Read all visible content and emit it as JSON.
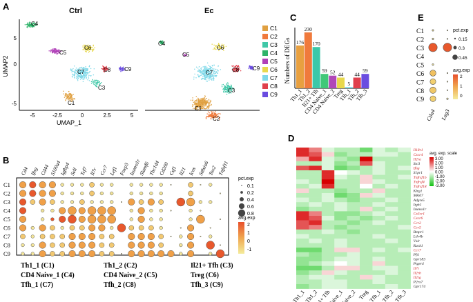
{
  "panels": {
    "A": {
      "label": "A",
      "titles": [
        "Ctrl",
        "Ec"
      ],
      "xlabel": "UMAP_1",
      "ylabel": "UMAP2",
      "xticks": [
        "-5",
        "-2.5",
        "0",
        "2.5",
        "5"
      ],
      "yticks": [
        "5",
        "0",
        "-5"
      ],
      "legend": [
        {
          "name": "C1",
          "color": "#e0a040"
        },
        {
          "name": "C2",
          "color": "#f07a3c"
        },
        {
          "name": "C3",
          "color": "#40c8a8"
        },
        {
          "name": "C4",
          "color": "#2fb36a"
        },
        {
          "name": "C5",
          "color": "#b040b8"
        },
        {
          "name": "C6",
          "color": "#e8d84c"
        },
        {
          "name": "C7",
          "color": "#7ed8e8"
        },
        {
          "name": "C8",
          "color": "#e0404c"
        },
        {
          "name": "C9",
          "color": "#6a4ce0"
        }
      ],
      "cluster_labels_ctrl": [
        "C4",
        "C5",
        "C6",
        "C7",
        "C8",
        "C9",
        "C3",
        "C1"
      ],
      "cluster_labels_ec": [
        "C4",
        "C5",
        "C6",
        "C7",
        "C8",
        "C9",
        "C3",
        "C1",
        "C2"
      ]
    },
    "B": {
      "label": "B",
      "genes": [
        "Cd4",
        "Ifng",
        "Cd44",
        "S100a4",
        "Igfbp4",
        "Sell",
        "Tcf7",
        "Il7r",
        "Ccr7",
        "Lef1",
        "Foxp3",
        "Izumo1r",
        "Slamf6",
        "Tbc1d4",
        "Cd200",
        "Csf1",
        "Il21",
        "Icos",
        "St8sia6",
        "Tox2",
        "Tnfsf11"
      ],
      "clusters": [
        "C1",
        "C2",
        "C3",
        "C4",
        "C5",
        "C6",
        "C7",
        "C8",
        "C9"
      ],
      "size_legend_title": "pct.exp",
      "size_legend": [
        "0.1",
        "0.2",
        "0.4",
        "0.6",
        "0.8"
      ],
      "color_legend_title": "avg.exp",
      "color_ticks": [
        "2",
        "1",
        "0",
        "-1"
      ],
      "captions": [
        [
          "Th1_1 (C1)",
          "CD4 Naive_1 (C4)",
          "Tfh_1 (C7)"
        ],
        [
          "Th1_2 (C2)",
          "CD4 Naive_2 (C5)",
          "Tfh_2 (C8)"
        ],
        [
          "Il21+ Tfh (C3)",
          "Treg (C6)",
          "Tfh_3 (C9)"
        ]
      ]
    },
    "C": {
      "label": "C",
      "ylabel": "Numbers of DEGs"
    },
    "D": {
      "label": "D",
      "genes": [
        "Il18r1",
        "Cxcr4",
        "Il2ra",
        "Stc3",
        "Ifng",
        "S1pr1",
        "Tnfrsf1b",
        "Tnfrsf4",
        "Tnfrsf18",
        "Klrg1",
        "Mki67",
        "Adgre5",
        "Itgb1",
        "Izumo1r",
        "Cx3cr1",
        "Cxcr6",
        "Ccr2",
        "Ccr5",
        "Bmpr1",
        "Lilr4b",
        "Vsir",
        "Rack1",
        "Ccr7",
        "Pf4",
        "Gpr183",
        "Ptger4",
        "Il7r",
        "Il2rb",
        "Il2rg",
        "P2rx7",
        "Gpr174"
      ],
      "gene_colors": [
        "#d02020",
        "#d02020",
        "#d02020",
        "#202020",
        "#d02020",
        "#202020",
        "#d02020",
        "#d02020",
        "#d02020",
        "#202020",
        "#202020",
        "#202020",
        "#202020",
        "#202020",
        "#d02020",
        "#d02020",
        "#d02020",
        "#d02020",
        "#202020",
        "#202020",
        "#202020",
        "#202020",
        "#d02020",
        "#202020",
        "#202020",
        "#202020",
        "#d02020",
        "#d02020",
        "#d02020",
        "#202020",
        "#202020"
      ],
      "columns": [
        "Th1_1",
        "Th1_2",
        "Il21+ Tfh",
        "CD4 Naive_1",
        "CD4 Naive_2",
        "Treg",
        "Tfh_1",
        "Tfh_2",
        "Tfh_3"
      ],
      "legend_title": "avg. exp. scale",
      "legend_ticks": [
        "3.00",
        "2.00",
        "1.00",
        "0.00",
        "-1.00",
        "-2.00",
        "-3.00"
      ],
      "values": [
        [
          2.5,
          1.5,
          -0.5,
          -1,
          -1,
          -2,
          -0.5,
          -1,
          -0.5
        ],
        [
          2.5,
          2.0,
          0.5,
          -1.5,
          -1,
          -1,
          -0.5,
          -0.5,
          -1
        ],
        [
          1.0,
          2.5,
          -0.5,
          -1,
          -1.5,
          3.0,
          -1,
          -1,
          -1
        ],
        [
          -1,
          -1,
          -0.5,
          -1.5,
          -1,
          2.0,
          -0.5,
          -1,
          -1
        ],
        [
          2.0,
          2.5,
          -0.5,
          -2,
          -1.5,
          -1,
          -0.5,
          -1,
          -0.5
        ],
        [
          -1,
          -1,
          2.5,
          0,
          -0.5,
          -1,
          -0.5,
          -1,
          -1
        ],
        [
          -1,
          -1,
          2.5,
          -0.5,
          -1,
          0.5,
          -1,
          -1,
          -0.5
        ],
        [
          -0.5,
          -1,
          3.0,
          -1,
          -1,
          0.5,
          -0.5,
          -1,
          -1
        ],
        [
          -1,
          -0.5,
          2.5,
          -1,
          -1,
          0,
          -1,
          -0.5,
          -1
        ],
        [
          0.5,
          -1,
          -1,
          -1.5,
          -1,
          -1,
          0.5,
          -1,
          -1
        ],
        [
          -1,
          -1,
          -0.5,
          -2,
          -1.5,
          0.5,
          -0.5,
          -1,
          -1
        ],
        [
          -0.5,
          -1,
          -0.5,
          -1,
          -1.5,
          -1,
          -1,
          -0.5,
          -1
        ],
        [
          -1,
          -0.5,
          -1,
          -0.5,
          -1,
          -1,
          -0.5,
          -1,
          -1
        ],
        [
          -1.5,
          -1,
          -1,
          -0.5,
          -1,
          0.5,
          -1,
          -0.5,
          -1
        ],
        [
          2.5,
          1.5,
          -1,
          -1.5,
          -1.5,
          -1,
          -0.5,
          -1,
          -1
        ],
        [
          2.5,
          2.0,
          -0.5,
          -1.5,
          -1,
          -1.5,
          -1,
          -0.5,
          -1
        ],
        [
          2.0,
          2.5,
          -1,
          -1,
          -1.5,
          -1,
          -0.5,
          -1,
          -1
        ],
        [
          2.0,
          1.5,
          -1,
          -1.5,
          -1,
          -1,
          -1,
          -1,
          -0.5
        ],
        [
          -1,
          -1,
          -0.5,
          -1,
          -1.5,
          -1,
          -1,
          -1,
          -1
        ],
        [
          -0.5,
          -1,
          -1,
          -1,
          -1,
          -1,
          -0.5,
          -1,
          -1
        ],
        [
          -1,
          -0.5,
          -1,
          -0.5,
          -1,
          -1,
          -1,
          -0.5,
          -1
        ],
        [
          -1,
          -1,
          -1,
          -0.5,
          -1,
          -1,
          -1,
          -1,
          -1
        ],
        [
          -2,
          -2,
          -1,
          0.5,
          0.5,
          -1,
          -0.5,
          -1,
          -0.5
        ],
        [
          -1,
          -1.5,
          -1,
          -1,
          -0.5,
          -1,
          -1,
          -1,
          -1
        ],
        [
          -1.5,
          -1.5,
          -1,
          -0.5,
          -0.5,
          -1,
          -0.5,
          -1,
          -1
        ],
        [
          -1.5,
          -1,
          -0.5,
          0,
          -0.5,
          -1,
          0.5,
          -1,
          -1
        ],
        [
          -2,
          -2,
          -1,
          0.5,
          0.5,
          -1,
          -0.5,
          -0.5,
          -1
        ],
        [
          -1.5,
          -1,
          0.5,
          -0.5,
          -1,
          -1,
          -1,
          -0.5,
          -1
        ],
        [
          -1,
          -0.5,
          -0.5,
          -1,
          -1,
          0.5,
          -0.5,
          -1,
          -1
        ],
        [
          -1,
          -1,
          -0.5,
          -0.5,
          -1,
          -1,
          -0.5,
          -1,
          -1
        ],
        [
          -1.5,
          -1,
          -0.5,
          -0.5,
          -1,
          -1,
          -1,
          -0.5,
          -1
        ]
      ]
    },
    "E": {
      "label": "E",
      "clusters": [
        "C1",
        "C2",
        "C3",
        "C4",
        "C5",
        "C6",
        "C7",
        "C8",
        "C9"
      ],
      "genes": [
        "Ctla4",
        "Lag3"
      ],
      "size_legend_title": "pct.exp",
      "size_legend": [
        "0.15",
        "0.3",
        "0.45"
      ],
      "color_legend_title": "avg.exp",
      "color_ticks": [
        "2",
        "1",
        "0"
      ]
    }
  },
  "chart_data": {
    "type": "bar",
    "title": "",
    "xlabel": "",
    "ylabel": "Numbers of DEGs",
    "categories": [
      "Th1_1",
      "Th1_2",
      "Il21+ Tfh",
      "CD4 Naive_1",
      "CD4 Naive_2",
      "Treg",
      "Tfh_1",
      "Tfh_2",
      "Tfh_3"
    ],
    "values": [
      176,
      230,
      170,
      59,
      52,
      44,
      5,
      44,
      59
    ],
    "value_labels": [
      "176",
      "230",
      "170",
      "59",
      "52",
      "44",
      "5",
      "44",
      "59"
    ],
    "colors": [
      "#e8a040",
      "#f07a3c",
      "#3cc8a8",
      "#40c878",
      "#b048b8",
      "#e8d84c",
      "#7ed8e8",
      "#e0404c",
      "#6a4ce0"
    ],
    "ylim": [
      0,
      250
    ],
    "grid": false
  }
}
